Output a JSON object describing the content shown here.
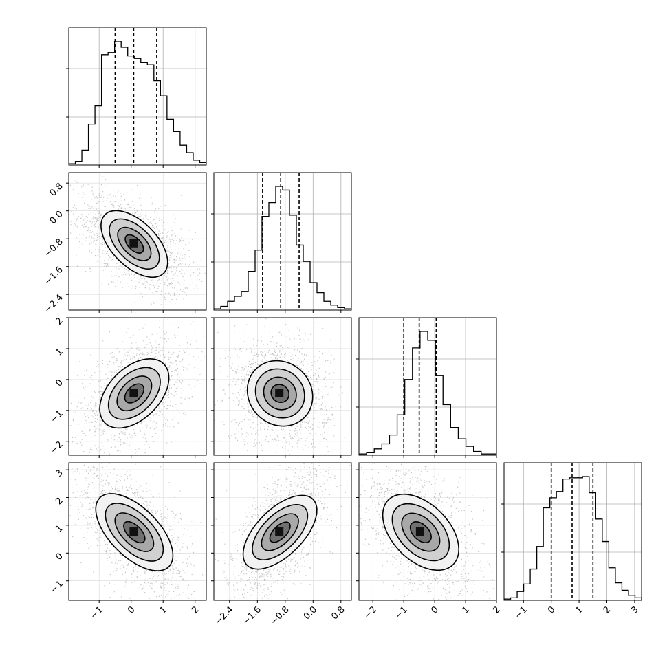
{
  "chart_data": {
    "type": "corner",
    "grid": true,
    "variables": [
      {
        "range": [
          -1.95,
          2.35
        ],
        "ticks": [
          -1,
          0,
          1,
          2
        ],
        "tick_labels": [
          "−1",
          "0",
          "1",
          "2"
        ],
        "mean": 0.1,
        "sd": 0.55,
        "quantiles": [
          -0.5,
          0.08,
          0.8
        ]
      },
      {
        "range": [
          -2.85,
          1.1
        ],
        "ticks": [
          -2.4,
          -1.6,
          -0.8,
          0.0,
          0.8
        ],
        "tick_labels": [
          "−2.4",
          "−1.6",
          "−0.8",
          "0.0",
          "0.8"
        ],
        "mean": -0.95,
        "sd": 0.45,
        "quantiles": [
          -1.45,
          -0.93,
          -0.4
        ]
      },
      {
        "range": [
          -2.45,
          2.0
        ],
        "ticks": [
          -2,
          -1,
          0,
          1,
          2
        ],
        "tick_labels": [
          "−2",
          "−1",
          "0",
          "1",
          "2"
        ],
        "mean": -0.45,
        "sd": 0.55,
        "quantiles": [
          -1.0,
          -0.5,
          0.05
        ]
      },
      {
        "range": [
          -1.7,
          3.25
        ],
        "ticks": [
          -1,
          0,
          1,
          2,
          3
        ],
        "tick_labels": [
          "−1",
          "0",
          "1",
          "2",
          "3"
        ],
        "mean": 0.75,
        "sd": 0.75,
        "quantiles": [
          0.0,
          0.75,
          1.5
        ]
      }
    ],
    "histograms": [
      {
        "counts": [
          1,
          3,
          12,
          33,
          48,
          89,
          91,
          100,
          95,
          88,
          86,
          83,
          81,
          68,
          56,
          37,
          27,
          16,
          10,
          4,
          2
        ]
      },
      {
        "counts": [
          1,
          3,
          7,
          11,
          15,
          31,
          48,
          75,
          86,
          99,
          96,
          76,
          52,
          39,
          22,
          14,
          7,
          4,
          2,
          1
        ]
      },
      {
        "counts": [
          1,
          2,
          5,
          9,
          16,
          32,
          60,
          85,
          98,
          91,
          63,
          40,
          22,
          13,
          7,
          3,
          1,
          1
        ]
      },
      {
        "counts": [
          1,
          2,
          7,
          13,
          25,
          43,
          74,
          82,
          87,
          97,
          98,
          98,
          99,
          86,
          65,
          47,
          26,
          14,
          8,
          4,
          2
        ]
      }
    ],
    "correlations": [
      [
        1,
        -0.55,
        0.45,
        -0.6
      ],
      [
        -0.55,
        1,
        -0.1,
        0.6
      ],
      [
        0.45,
        -0.1,
        1,
        -0.45
      ],
      [
        -0.6,
        0.6,
        -0.45,
        1
      ]
    ]
  }
}
